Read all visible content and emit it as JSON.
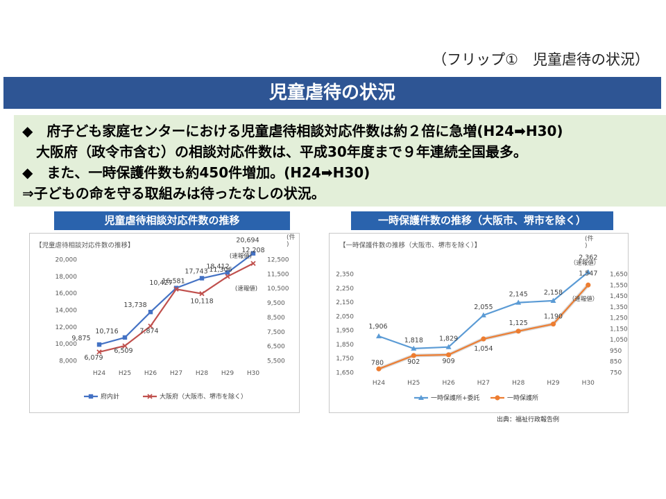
{
  "header": {
    "flip_label": "（フリップ①　児童虐待の状況）",
    "title": "児童虐待の状況"
  },
  "summary": {
    "lines": [
      "◆　府子ども家庭センターにおける児童虐待相談対応件数は約２倍に急増(H24➡H30)",
      "　大阪府（政令市含む）の相談対応件数は、平成30年度まで９年連続全国最多。",
      "◆　また、一時保護件数も約450件増加。(H24➡H30)",
      "⇒子どもの命を守る取組みは待ったなしの状況。"
    ]
  },
  "panels": {
    "left_title": "児童虐待相談対応件数の推移",
    "right_title": "一時保護件数の推移（大阪市、堺市を除く）"
  },
  "source": "出典：福祉行政報告例",
  "colors": {
    "title_bg": "#2e5594",
    "panel_title_bg": "#2a63ad",
    "summary_bg": "#e3efd9",
    "blue_series": "#4472c4",
    "red_series": "#c0504d",
    "lightblue_series": "#5b9bd5",
    "orange_series": "#ed7d31"
  },
  "chart_data": [
    {
      "type": "line",
      "title": "【児童虐待相談対応件数の推移】",
      "categories": [
        "H24",
        "H25",
        "H26",
        "H27",
        "H28",
        "H29",
        "H30"
      ],
      "y_ticks": [
        "8,000",
        "10,000",
        "12,000",
        "14,000",
        "16,000",
        "18,000",
        "20,000"
      ],
      "y2_ticks": [
        "5,500",
        "6,500",
        "7,500",
        "8,500",
        "9,500",
        "10,500",
        "11,500",
        "12,500"
      ],
      "y2_unit": "(件\n)",
      "ylim": [
        8000,
        21000
      ],
      "y2lim": [
        5500,
        13000
      ],
      "grid": false,
      "legend": "bottom",
      "series": [
        {
          "name": "府内計",
          "axis": "left",
          "color": "#4472c4",
          "values": [
            9875,
            10716,
            13738,
            16581,
            17743,
            18412,
            20694
          ],
          "labels": [
            "9,875",
            "10,716",
            "13,738",
            "16,581",
            "17,743",
            "18,412",
            "20,694"
          ]
        },
        {
          "name": "大阪府（大阪市、堺市を除く）",
          "axis": "right",
          "color": "#c0504d",
          "values": [
            6079,
            6509,
            7874,
            10427,
            10118,
            11306,
            12208
          ],
          "labels": [
            "6,079",
            "6,509",
            "7,874",
            "10,427",
            "10,118",
            "11,306",
            "12,208"
          ]
        }
      ],
      "annotations": [
        "(速報値)",
        "(速報値)"
      ]
    },
    {
      "type": "line",
      "title": "【一時保護件数の推移（大阪市、堺市を除く）】",
      "categories": [
        "H24",
        "H25",
        "H26",
        "H27",
        "H28",
        "H29",
        "H30"
      ],
      "y_ticks": [
        "1,650",
        "1,750",
        "1,850",
        "1,950",
        "2,050",
        "2,150",
        "2,250",
        "2,350"
      ],
      "y2_ticks": [
        "750",
        "850",
        "950",
        "1,050",
        "1,150",
        "1,250",
        "1,350",
        "1,450",
        "1,550",
        "1,650"
      ],
      "y2_unit": "(件\n)",
      "ylim": [
        1650,
        2400
      ],
      "y2lim": [
        750,
        1700
      ],
      "grid": false,
      "legend": "bottom",
      "series": [
        {
          "name": "一時保護所+委託",
          "axis": "left",
          "color": "#5b9bd5",
          "values": [
            1906,
            1818,
            1829,
            2055,
            2145,
            2158,
            2362
          ],
          "labels": [
            "1,906",
            "1,818",
            "1,829",
            "2,055",
            "2,145",
            "2,158",
            "2,362"
          ]
        },
        {
          "name": "一時保護所",
          "axis": "right",
          "color": "#ed7d31",
          "values": [
            780,
            902,
            909,
            1054,
            1125,
            1190,
            1547
          ],
          "labels": [
            "780",
            "902",
            "909",
            "1,054",
            "1,125",
            "1,190",
            "1,547"
          ]
        }
      ],
      "annotations": [
        "（速報値）",
        "（速報値）"
      ]
    }
  ]
}
